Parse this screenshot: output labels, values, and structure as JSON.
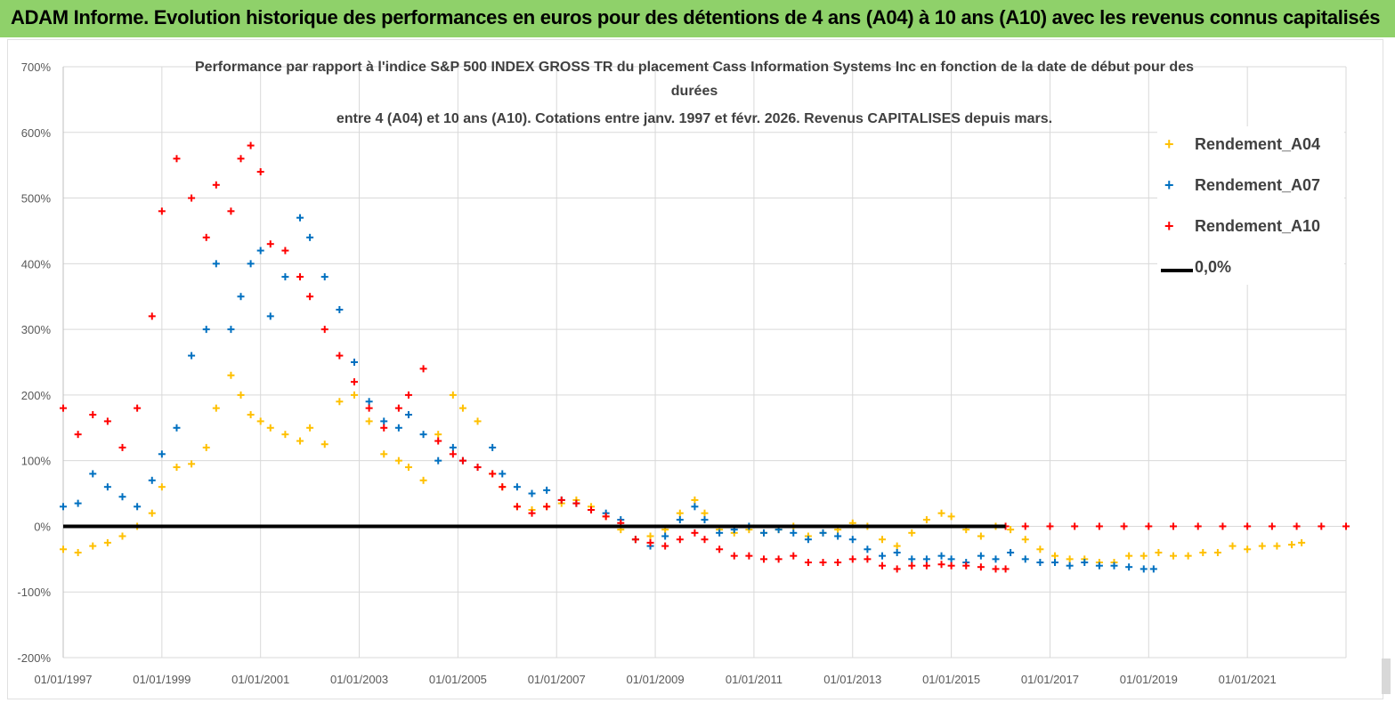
{
  "header": {
    "title": "ADAM Informe. Evolution historique des performances en euros pour des détentions de 4 ans (A04) à 10 ans (A10) avec les revenus connus capitalisés"
  },
  "chart_data": {
    "type": "scatter",
    "title_lines": [
      "Performance par rapport à l'indice S&P 500 INDEX GROSS TR  du placement Cass Information Systems Inc en fonction de la date de début pour des",
      "durées",
      "entre 4 (A04) et 10 ans (A10). Cotations entre janv. 1997 et févr. 2026. Revenus CAPITALISES depuis mars."
    ],
    "xlabel": "",
    "ylabel": "",
    "ylim": [
      -200,
      700
    ],
    "xlim": [
      1997.0,
      2023.0
    ],
    "yticks": [
      "700%",
      "600%",
      "500%",
      "400%",
      "300%",
      "200%",
      "100%",
      "0%",
      "-100%",
      "-200%"
    ],
    "xticks": [
      "01/01/1997",
      "01/01/1999",
      "01/01/2001",
      "01/01/2003",
      "01/01/2005",
      "01/01/2007",
      "01/01/2009",
      "01/01/2011",
      "01/01/2013",
      "01/01/2015",
      "01/01/2017",
      "01/01/2019",
      "01/01/2021"
    ],
    "grid": true,
    "legend_position": "top-right",
    "series": [
      {
        "name": "Rendement_A04",
        "color": "#ffc000",
        "marker": "+",
        "x": [
          1997.0,
          1997.3,
          1997.6,
          1997.9,
          1998.2,
          1998.5,
          1998.8,
          1999.0,
          1999.3,
          1999.6,
          1999.9,
          2000.1,
          2000.4,
          2000.6,
          2000.8,
          2001.0,
          2001.2,
          2001.5,
          2001.8,
          2002.0,
          2002.3,
          2002.6,
          2002.9,
          2003.2,
          2003.5,
          2003.8,
          2004.0,
          2004.3,
          2004.6,
          2004.9,
          2005.1,
          2005.4,
          2005.7,
          2005.9,
          2006.2,
          2006.5,
          2006.8,
          2007.1,
          2007.4,
          2007.7,
          2008.0,
          2008.3,
          2008.6,
          2008.9,
          2009.2,
          2009.5,
          2009.8,
          2010.0,
          2010.3,
          2010.6,
          2010.9,
          2011.2,
          2011.5,
          2011.8,
          2012.1,
          2012.4,
          2012.7,
          2013.0,
          2013.3,
          2013.6,
          2013.9,
          2014.2,
          2014.5,
          2014.8,
          2015.0,
          2015.3,
          2015.6,
          2015.9,
          2016.2,
          2016.5,
          2016.8,
          2017.1,
          2017.4,
          2017.7,
          2018.0,
          2018.3,
          2018.6,
          2018.9,
          2019.2,
          2019.5,
          2019.8,
          2020.1,
          2020.4,
          2020.7,
          2021.0,
          2021.3,
          2021.6,
          2021.9,
          2022.1
        ],
        "y": [
          -35,
          -40,
          -30,
          -25,
          -15,
          0,
          20,
          60,
          90,
          95,
          120,
          180,
          230,
          200,
          170,
          160,
          150,
          140,
          130,
          150,
          125,
          190,
          200,
          160,
          110,
          100,
          90,
          70,
          140,
          200,
          180,
          160,
          80,
          60,
          30,
          25,
          30,
          35,
          40,
          30,
          15,
          -5,
          -20,
          -15,
          -5,
          20,
          40,
          20,
          -5,
          -10,
          -5,
          -10,
          -5,
          0,
          -15,
          -10,
          -5,
          5,
          0,
          -20,
          -30,
          -10,
          10,
          20,
          15,
          -5,
          -15,
          0,
          -5,
          -20,
          -35,
          -45,
          -50,
          -50,
          -55,
          -55,
          -45,
          -45,
          -40,
          -45,
          -45,
          -40,
          -40,
          -30,
          -35,
          -30,
          -30,
          -28,
          -25
        ]
      },
      {
        "name": "Rendement_A07",
        "color": "#0070c0",
        "marker": "+",
        "x": [
          1997.0,
          1997.3,
          1997.6,
          1997.9,
          1998.2,
          1998.5,
          1998.8,
          1999.0,
          1999.3,
          1999.6,
          1999.9,
          2000.1,
          2000.4,
          2000.6,
          2000.8,
          2001.0,
          2001.2,
          2001.5,
          2001.8,
          2002.0,
          2002.3,
          2002.6,
          2002.9,
          2003.2,
          2003.5,
          2003.8,
          2004.0,
          2004.3,
          2004.6,
          2004.9,
          2005.1,
          2005.4,
          2005.7,
          2005.9,
          2006.2,
          2006.5,
          2006.8,
          2007.1,
          2007.4,
          2007.7,
          2008.0,
          2008.3,
          2008.6,
          2008.9,
          2009.2,
          2009.5,
          2009.8,
          2010.0,
          2010.3,
          2010.6,
          2010.9,
          2011.2,
          2011.5,
          2011.8,
          2012.1,
          2012.4,
          2012.7,
          2013.0,
          2013.3,
          2013.6,
          2013.9,
          2014.2,
          2014.5,
          2014.8,
          2015.0,
          2015.3,
          2015.6,
          2015.9,
          2016.2,
          2016.5,
          2016.8,
          2017.1,
          2017.4,
          2017.7,
          2018.0,
          2018.3,
          2018.6,
          2018.9,
          2019.1
        ],
        "y": [
          30,
          35,
          80,
          60,
          45,
          30,
          70,
          110,
          150,
          260,
          300,
          400,
          300,
          350,
          400,
          420,
          320,
          380,
          470,
          440,
          380,
          330,
          250,
          190,
          160,
          150,
          170,
          140,
          100,
          120,
          100,
          90,
          120,
          80,
          60,
          50,
          55,
          40,
          35,
          25,
          20,
          10,
          -20,
          -30,
          -15,
          10,
          30,
          10,
          -10,
          -5,
          0,
          -10,
          -5,
          -10,
          -20,
          -10,
          -15,
          -20,
          -35,
          -45,
          -40,
          -50,
          -50,
          -45,
          -50,
          -55,
          -45,
          -50,
          -40,
          -50,
          -55,
          -55,
          -60,
          -55,
          -60,
          -60,
          -62,
          -65,
          -65
        ]
      },
      {
        "name": "Rendement_A10",
        "color": "#ff0000",
        "marker": "+",
        "x": [
          1997.0,
          1997.3,
          1997.6,
          1997.9,
          1998.2,
          1998.5,
          1998.8,
          1999.0,
          1999.3,
          1999.6,
          1999.9,
          2000.1,
          2000.4,
          2000.6,
          2000.8,
          2001.0,
          2001.2,
          2001.5,
          2001.8,
          2002.0,
          2002.3,
          2002.6,
          2002.9,
          2003.2,
          2003.5,
          2003.8,
          2004.0,
          2004.3,
          2004.6,
          2004.9,
          2005.1,
          2005.4,
          2005.7,
          2005.9,
          2006.2,
          2006.5,
          2006.8,
          2007.1,
          2007.4,
          2007.7,
          2008.0,
          2008.3,
          2008.6,
          2008.9,
          2009.2,
          2009.5,
          2009.8,
          2010.0,
          2010.3,
          2010.6,
          2010.9,
          2011.2,
          2011.5,
          2011.8,
          2012.1,
          2012.4,
          2012.7,
          2013.0,
          2013.3,
          2013.6,
          2013.9,
          2014.2,
          2014.5,
          2014.8,
          2015.0,
          2015.3,
          2015.6,
          2015.9,
          2016.1
        ],
        "y": [
          180,
          140,
          170,
          160,
          120,
          180,
          320,
          480,
          560,
          500,
          440,
          520,
          480,
          560,
          580,
          540,
          430,
          420,
          380,
          350,
          300,
          260,
          220,
          180,
          150,
          180,
          200,
          240,
          130,
          110,
          100,
          90,
          80,
          60,
          30,
          20,
          30,
          40,
          35,
          25,
          15,
          5,
          -20,
          -25,
          -30,
          -20,
          -10,
          -20,
          -35,
          -45,
          -45,
          -50,
          -50,
          -45,
          -55,
          -55,
          -55,
          -50,
          -50,
          -60,
          -65,
          -60,
          -60,
          -58,
          -60,
          -60,
          -62,
          -65,
          -65
        ]
      },
      {
        "name": "Rendement_A10",
        "color": "#ff0000",
        "marker": "+",
        "x": [
          2016.1,
          2016.5,
          2017.0,
          2017.5,
          2018.0,
          2018.5,
          2019.0,
          2019.5,
          2020.0,
          2020.5,
          2021.0,
          2021.5,
          2022.0,
          2022.5,
          2023.0
        ],
        "y": [
          0,
          0,
          0,
          0,
          0,
          0,
          0,
          0,
          0,
          0,
          0,
          0,
          0,
          0,
          0
        ]
      },
      {
        "name": "0,0%",
        "color": "#000000",
        "marker": "line",
        "x": [
          1997.0,
          2016.1
        ],
        "y": [
          0,
          0
        ]
      }
    ]
  }
}
